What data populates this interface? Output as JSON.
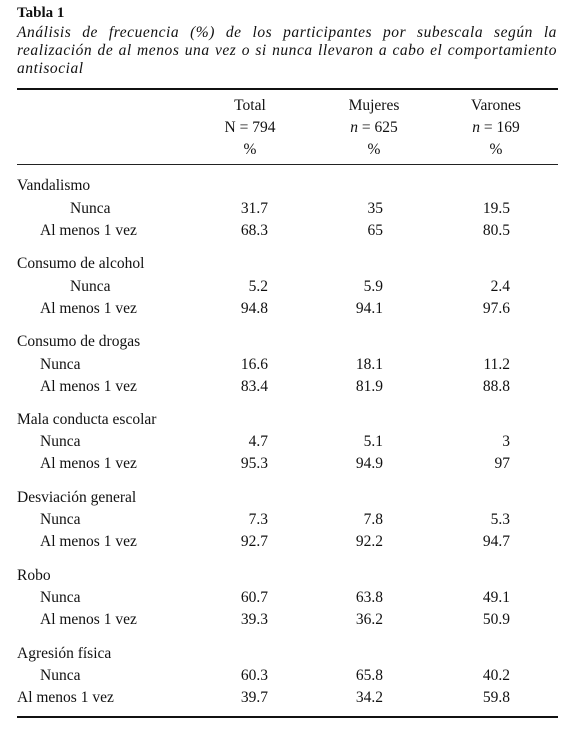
{
  "caption": {
    "label": "Tabla 1",
    "text": "Análisis de frecuencia (%) de los participantes por subescala según la realización de al menos una vez o si nunca llevaron a cabo el comportamiento antisocial"
  },
  "columns": [
    {
      "name": "Total",
      "n": "N = 794",
      "unit": "%"
    },
    {
      "name": "Mujeres",
      "n_var": "n",
      "n_val": " = 625",
      "unit": "%"
    },
    {
      "name": "Varones",
      "n_var": "n",
      "n_val": " = 169",
      "unit": "%"
    }
  ],
  "groups": [
    {
      "title": "Vandalismo",
      "rows": [
        {
          "label": "Nunca",
          "values": [
            "31.7",
            "35",
            "19.5"
          ]
        },
        {
          "label": "Al menos 1 vez",
          "values": [
            "68.3",
            "65",
            "80.5"
          ]
        }
      ]
    },
    {
      "title": "Consumo de alcohol",
      "rows": [
        {
          "label": "Nunca",
          "values": [
            "5.2",
            "5.9",
            "2.4"
          ]
        },
        {
          "label": "Al menos 1 vez",
          "values": [
            "94.8",
            "94.1",
            "97.6"
          ]
        }
      ]
    },
    {
      "title": "Consumo de drogas",
      "rows": [
        {
          "label": "Nunca",
          "values": [
            "16.6",
            "18.1",
            "11.2"
          ]
        },
        {
          "label": "Al menos 1 vez",
          "values": [
            "83.4",
            "81.9",
            "88.8"
          ]
        }
      ]
    },
    {
      "title": "Mala conducta escolar",
      "rows": [
        {
          "label": "Nunca",
          "values": [
            "4.7",
            "5.1",
            "3"
          ]
        },
        {
          "label": "Al menos 1 vez",
          "values": [
            "95.3",
            "94.9",
            "97"
          ]
        }
      ]
    },
    {
      "title": "Desviación general",
      "rows": [
        {
          "label": "Nunca",
          "values": [
            "7.3",
            "7.8",
            "5.3"
          ]
        },
        {
          "label": "Al menos 1 vez",
          "values": [
            "92.7",
            "92.2",
            "94.7"
          ]
        }
      ]
    },
    {
      "title": "Robo",
      "rows": [
        {
          "label": "Nunca",
          "values": [
            "60.7",
            "63.8",
            "49.1"
          ]
        },
        {
          "label": "Al menos 1 vez",
          "values": [
            "39.3",
            "36.2",
            "50.9"
          ]
        }
      ]
    },
    {
      "title": "Agresión física",
      "rows": [
        {
          "label": "Nunca",
          "values": [
            "60.3",
            "65.8",
            "40.2"
          ]
        },
        {
          "label": "Al menos 1 vez",
          "values": [
            "39.7",
            "34.2",
            "59.8"
          ]
        }
      ]
    }
  ]
}
